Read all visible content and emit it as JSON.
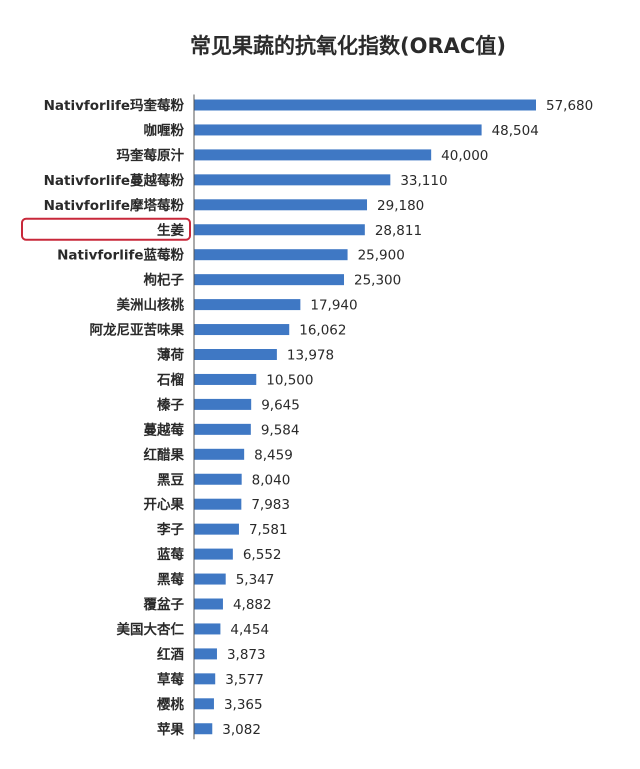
{
  "chart_data": {
    "type": "bar",
    "orientation": "horizontal",
    "title": "常见果蔬的抗氧化指数(ORAC值)",
    "categories": [
      "Nativforlife玛奎莓粉",
      "咖喱粉",
      "玛奎莓原汁",
      "Nativforlife蔓越莓粉",
      "Nativforlife摩塔莓粉",
      "生姜",
      "Nativforlife蓝莓粉",
      "枸杞子",
      "美洲山核桃",
      "阿龙尼亚苦味果",
      "薄荷",
      "石榴",
      "榛子",
      "蔓越莓",
      "红醋果",
      "黑豆",
      "开心果",
      "李子",
      "蓝莓",
      "黑莓",
      "覆盆子",
      "美国大杏仁",
      "红酒",
      "草莓",
      "樱桃",
      "苹果"
    ],
    "values": [
      57680,
      48504,
      40000,
      33110,
      29180,
      28811,
      25900,
      25300,
      17940,
      16062,
      13978,
      10500,
      9645,
      9584,
      8459,
      8040,
      7983,
      7581,
      6552,
      5347,
      4882,
      4454,
      3873,
      3577,
      3365,
      3082
    ],
    "value_labels": [
      "57,680",
      "48,504",
      "40,000",
      "33,110",
      "29,180",
      "28,811",
      "25,900",
      "25,300",
      "17,940",
      "16,062",
      "13,978",
      "10,500",
      "9,645",
      "9,584",
      "8,459",
      "8,040",
      "7,983",
      "7,581",
      "6,552",
      "5,347",
      "4,882",
      "4,454",
      "3,873",
      "3,577",
      "3,365",
      "3,082"
    ],
    "highlighted_category": "生姜",
    "xlim": [
      0,
      57680
    ],
    "grid": false,
    "legend": "none",
    "colors": {
      "bar": "#3f78c4",
      "highlight": "#c8283a",
      "text": "#2a2a2a",
      "axis": "#555555"
    }
  }
}
